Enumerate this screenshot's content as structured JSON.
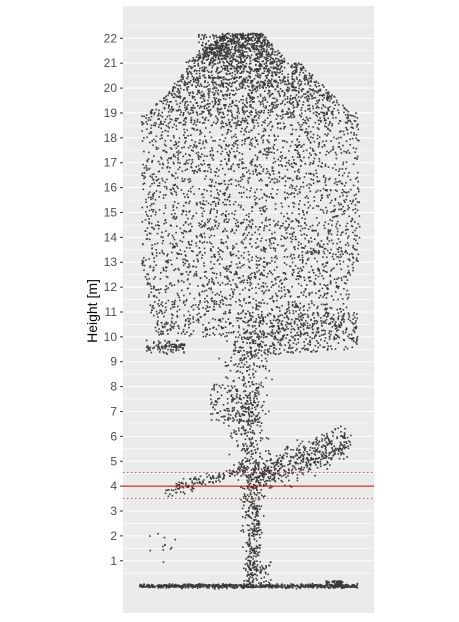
{
  "chart_data": {
    "type": "scatter",
    "title": "",
    "xlabel": "",
    "ylabel": "Height [m]",
    "ylim": [
      -1.1,
      23.3
    ],
    "y_ticks": [
      "1",
      "2",
      "3",
      "4",
      "5",
      "6",
      "7",
      "8",
      "9",
      "10",
      "11",
      "12",
      "13",
      "14",
      "15",
      "16",
      "17",
      "18",
      "19",
      "20",
      "21",
      "22"
    ],
    "grid": true,
    "legend": "none",
    "panel_background": "#ebebeb",
    "gridline_color": "#ffffff",
    "point_color": "#3a3a3a",
    "description_of_points": "terrestrial lidar point cloud of a single tree, side view",
    "hlines": [
      {
        "y": 4.0,
        "style": "solid",
        "color": "#c00000"
      },
      {
        "y": 4.55,
        "style": "dotted",
        "color": "#d04040"
      },
      {
        "y": 3.5,
        "style": "dotted",
        "color": "#d04040"
      }
    ]
  }
}
